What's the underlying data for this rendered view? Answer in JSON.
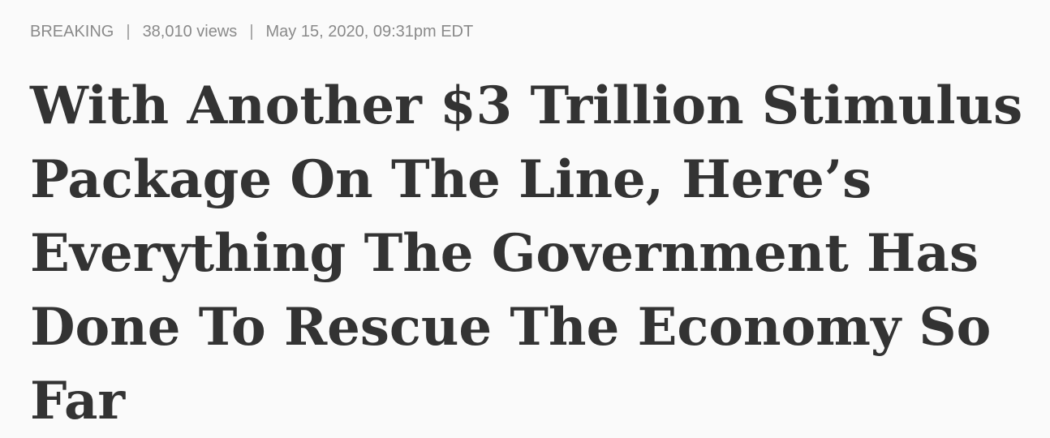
{
  "meta": {
    "category": "BREAKING",
    "separator": "|",
    "views": "38,010 views",
    "timestamp": "May 15, 2020, 09:31pm EDT"
  },
  "article": {
    "headline_lines": [
      "With Another $3 Trillion Stimulus",
      "Package On The Line, Here’s",
      "Everything The Government Has",
      "Done To Rescue The Economy So",
      "Far"
    ]
  },
  "colors": {
    "background": "#fafafa",
    "meta_text": "#8a8a8a",
    "headline_text": "#333333"
  }
}
